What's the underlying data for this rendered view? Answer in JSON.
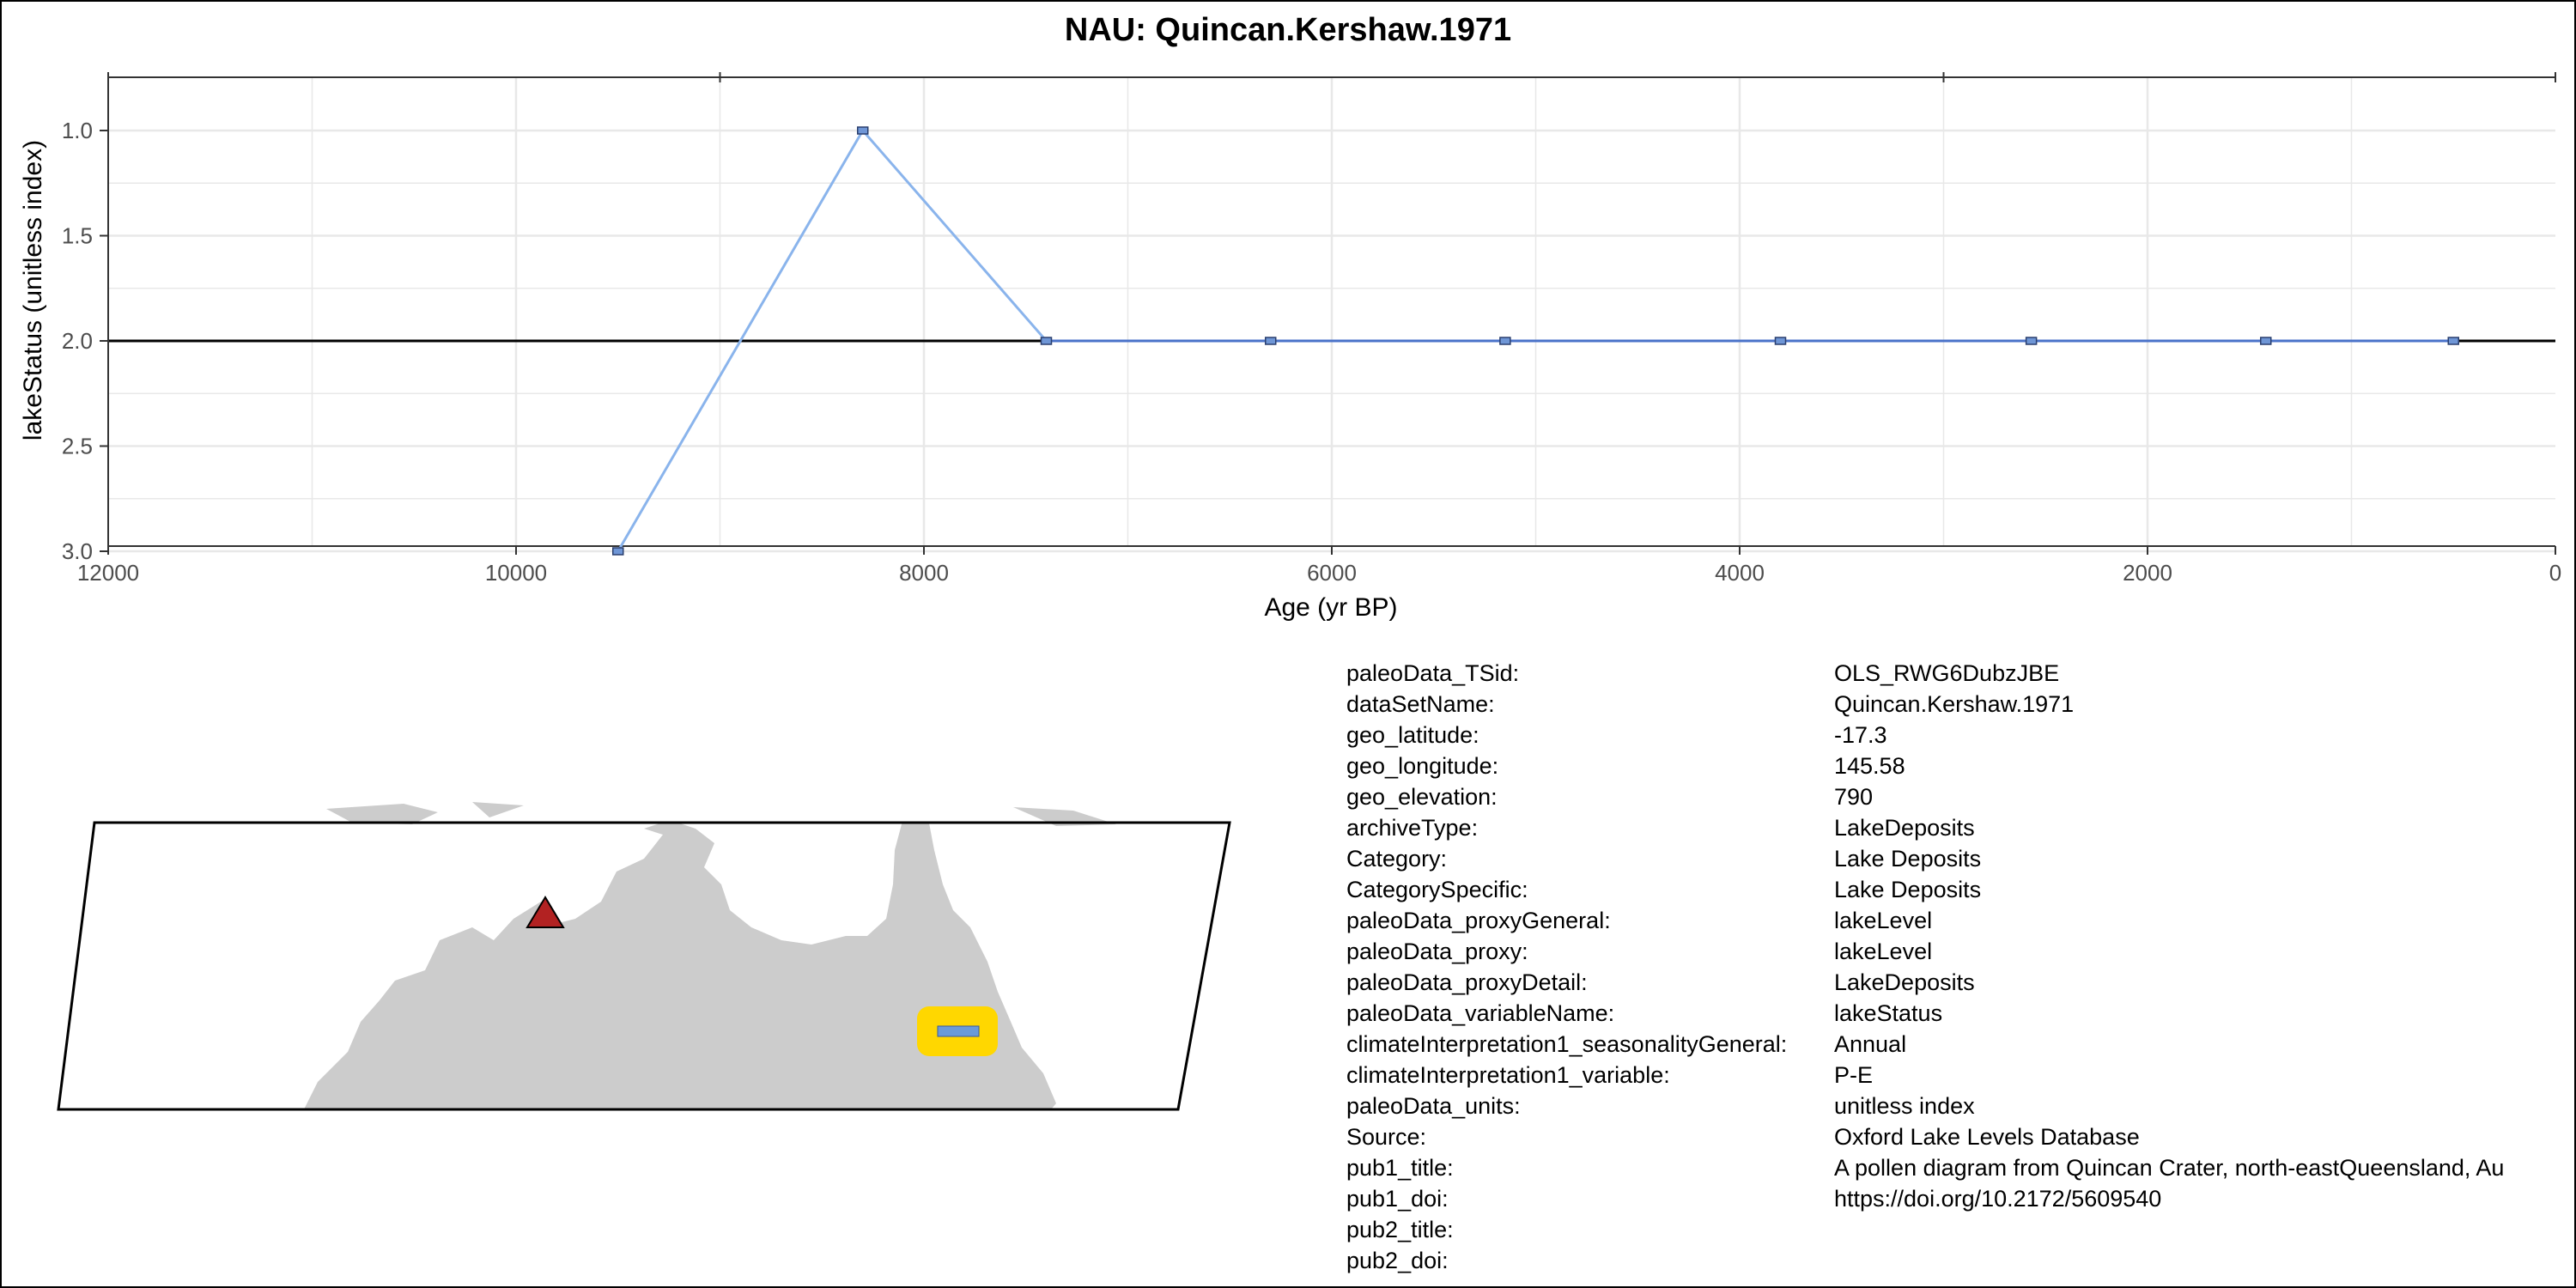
{
  "chart_data": {
    "type": "line",
    "title": "NAU: Quincan.Kershaw.1971",
    "xlabel": "Age (yr BP)",
    "ylabel": "lakeStatus (unitless index)",
    "xlim": [
      12000,
      0
    ],
    "ylim": [
      3.0,
      1.0
    ],
    "x_reversed": true,
    "y_reversed": true,
    "xticks": [
      12000,
      10000,
      8000,
      6000,
      4000,
      2000,
      0
    ],
    "xtick_labels": [
      "12000",
      "10000",
      "8000",
      "6000",
      "4000",
      "2000",
      "0"
    ],
    "yticks": [
      1.0,
      1.5,
      2.0,
      2.5,
      3.0
    ],
    "ytick_labels": [
      "1.0",
      "1.5",
      "2.0",
      "2.5",
      "3.0"
    ],
    "grid": true,
    "reference_line": 2.0,
    "series": [
      {
        "x": [
          9500,
          8300,
          7400,
          6300,
          5150,
          3800,
          2570,
          1420,
          500
        ],
        "y": [
          3,
          1,
          2,
          2,
          2,
          2,
          2,
          2,
          2
        ]
      }
    ]
  },
  "colors": {
    "line_light": "#8ab4ec",
    "line_dark": "#4a72c9",
    "marker_fill": "#6f96d6",
    "reference_line": "#000000",
    "grid": "#e8e8e8",
    "land": "#cccccc",
    "site_marker": "#b22222",
    "legend_box": "#ffd700",
    "legend_swatch": "#6a9ad8"
  },
  "map": {
    "site_marker_icon": "red-triangle-icon",
    "legend_icon": "line-swatch-icon"
  },
  "metadata": [
    {
      "key": "paleoData_TSid:",
      "value": "OLS_RWG6DubzJBE"
    },
    {
      "key": "dataSetName:",
      "value": "Quincan.Kershaw.1971"
    },
    {
      "key": "geo_latitude:",
      "value": "-17.3"
    },
    {
      "key": "geo_longitude:",
      "value": "145.58"
    },
    {
      "key": "geo_elevation:",
      "value": "790"
    },
    {
      "key": "archiveType:",
      "value": "LakeDeposits"
    },
    {
      "key": "Category:",
      "value": "Lake Deposits"
    },
    {
      "key": "CategorySpecific:",
      "value": "Lake Deposits"
    },
    {
      "key": "paleoData_proxyGeneral:",
      "value": "lakeLevel"
    },
    {
      "key": "paleoData_proxy:",
      "value": "lakeLevel"
    },
    {
      "key": "paleoData_proxyDetail:",
      "value": "LakeDeposits"
    },
    {
      "key": "paleoData_variableName:",
      "value": "lakeStatus"
    },
    {
      "key": "climateInterpretation1_seasonalityGeneral:",
      "value": "Annual"
    },
    {
      "key": "climateInterpretation1_variable:",
      "value": "P-E"
    },
    {
      "key": "paleoData_units:",
      "value": "unitless index"
    },
    {
      "key": "Source:",
      "value": "Oxford Lake Levels Database"
    },
    {
      "key": "pub1_title:",
      "value": "A pollen diagram from Quincan Crater, north-eastQueensland, Au"
    },
    {
      "key": "pub1_doi:",
      "value": "https://doi.org/10.2172/5609540"
    },
    {
      "key": "pub2_title:",
      "value": ""
    },
    {
      "key": "pub2_doi:",
      "value": ""
    }
  ]
}
